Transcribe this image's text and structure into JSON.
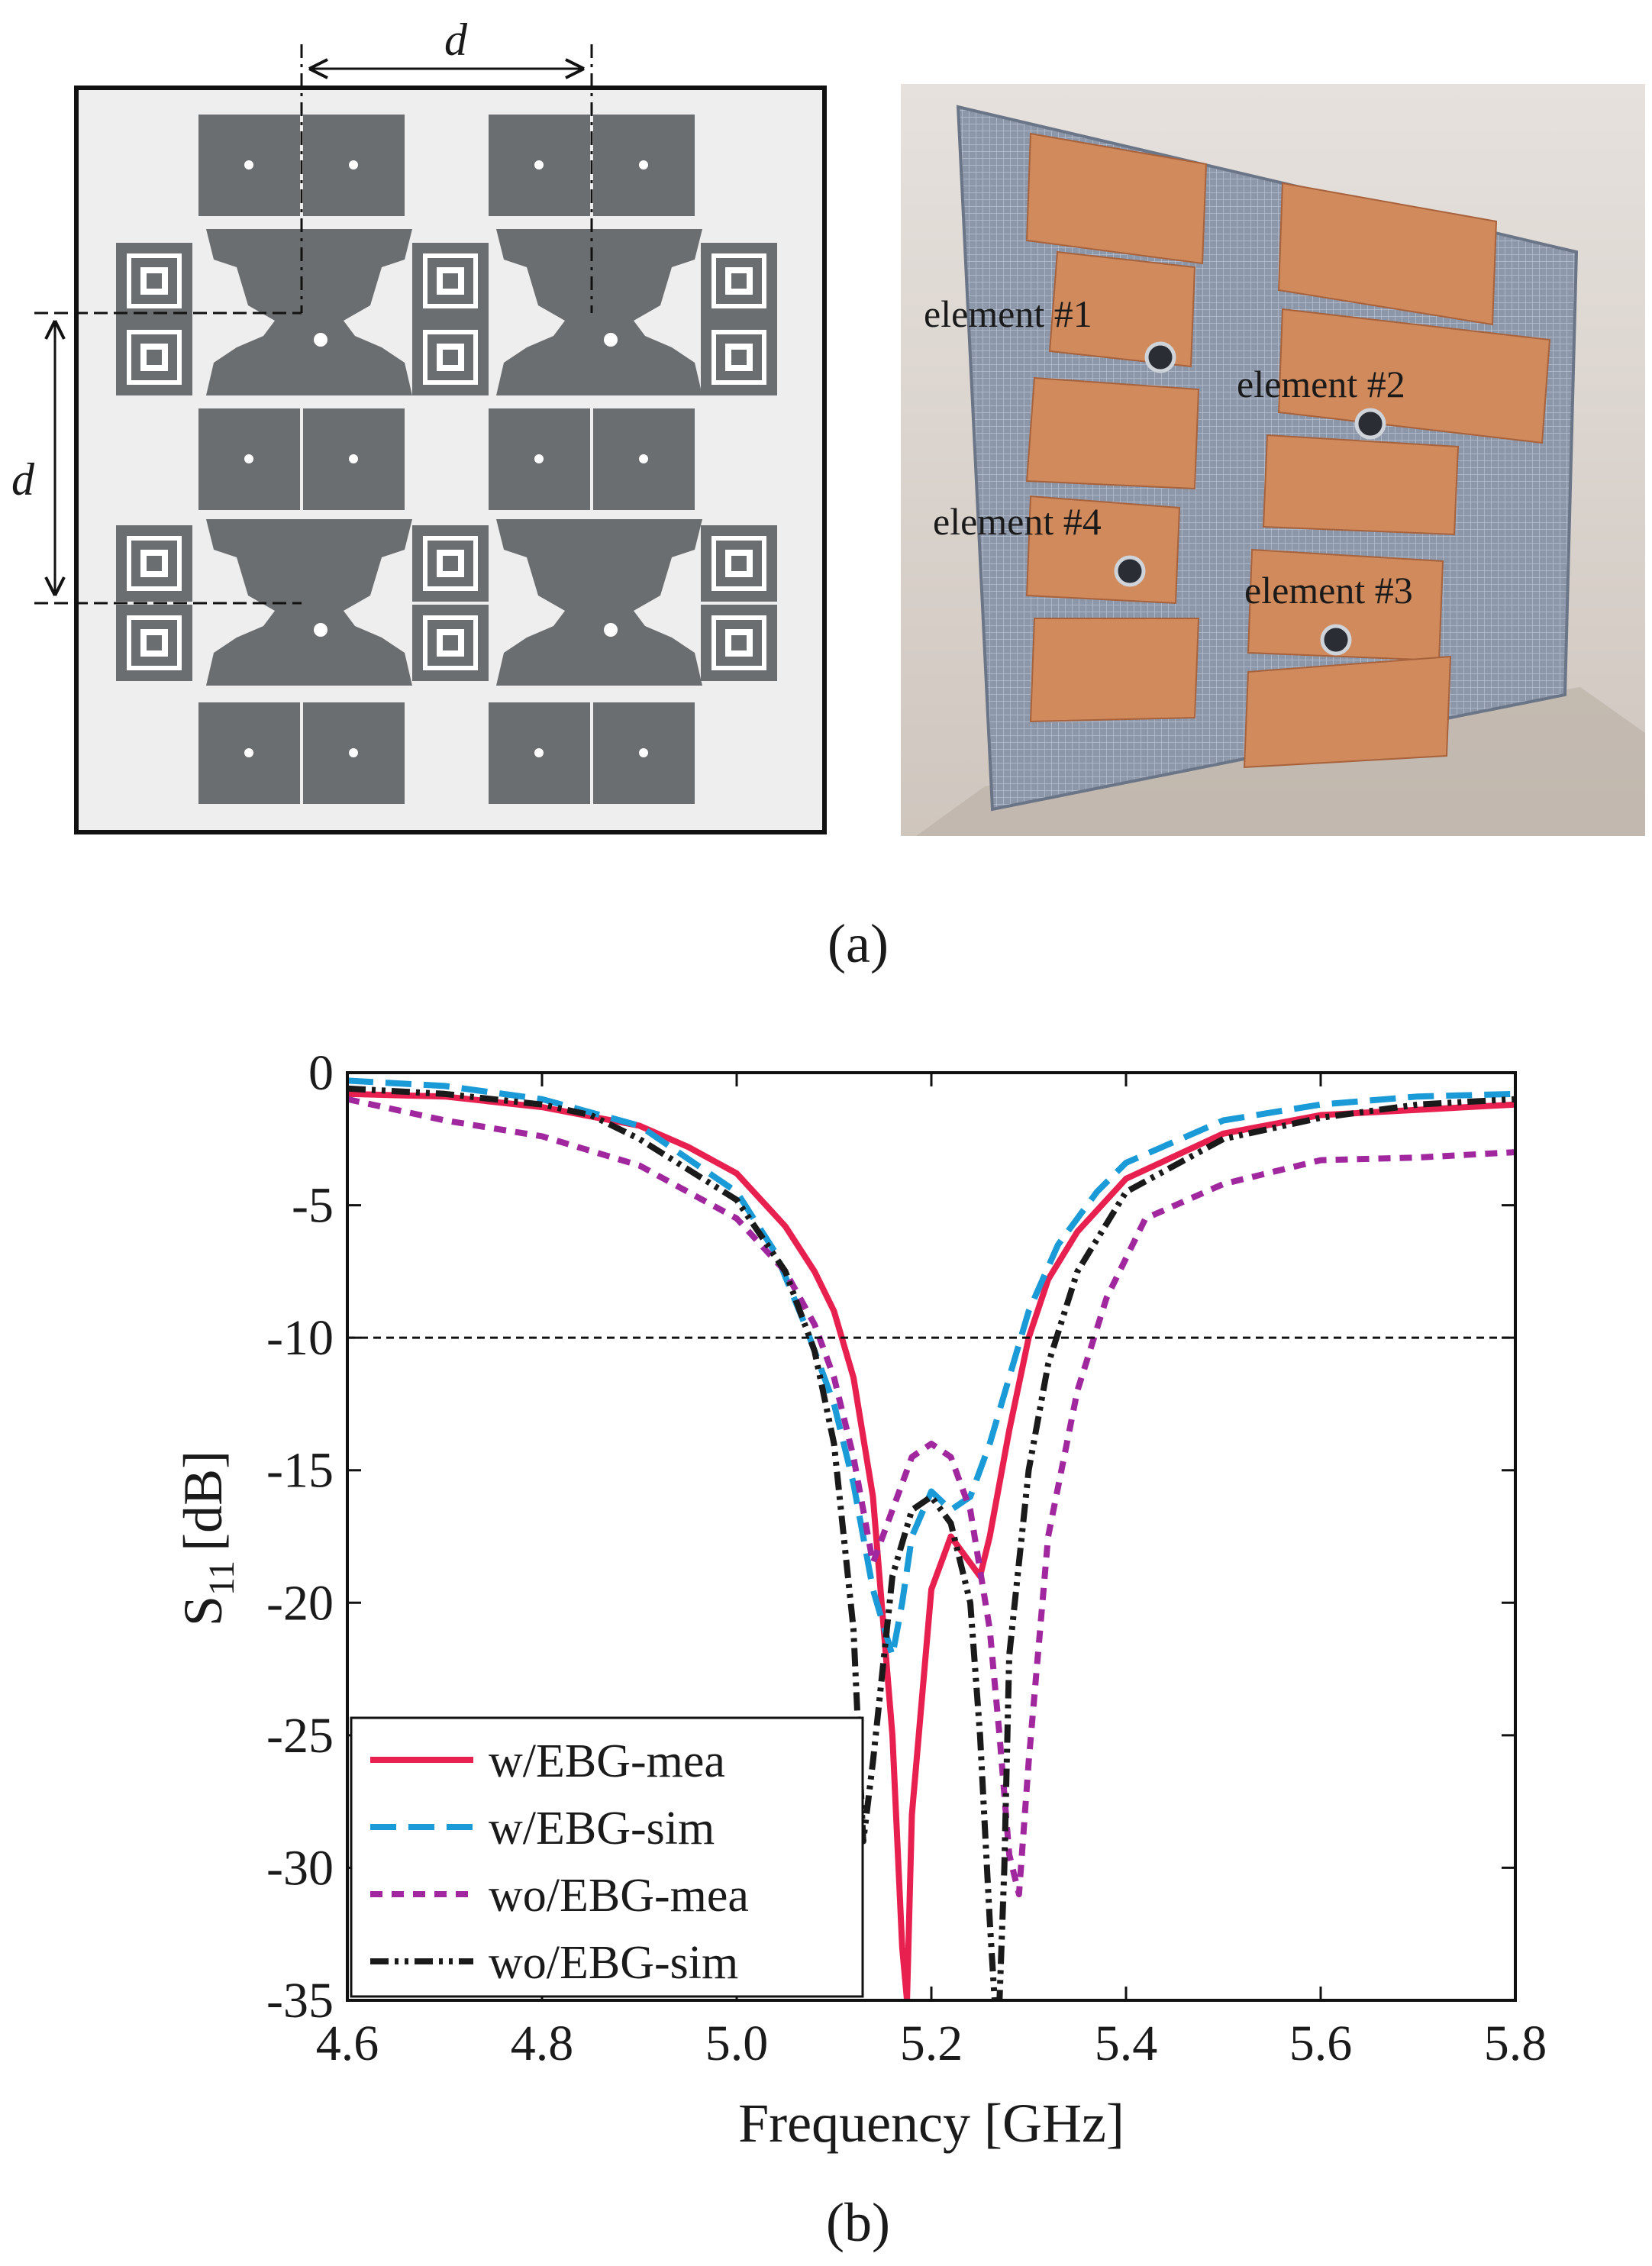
{
  "panel_a": {
    "caption": "(a)",
    "dimension_label_horizontal": "d",
    "dimension_label_vertical": "d",
    "photo_labels": [
      "element #1",
      "element #2",
      "element #4",
      "element #3"
    ],
    "colors": {
      "substrate": "#efeeee",
      "patch": "#6b6e70",
      "board": "#8a95a8",
      "copper": "#d08a5c"
    }
  },
  "panel_b": {
    "caption": "(b)"
  },
  "chart_data": {
    "type": "line",
    "title": "",
    "xlabel": "Frequency [GHz]",
    "ylabel_main": "S",
    "ylabel_sub": "11",
    "ylabel_unit": "[dB]",
    "xlim": [
      4.6,
      5.8
    ],
    "ylim": [
      -35,
      0
    ],
    "xticks": [
      4.6,
      4.8,
      5.0,
      5.2,
      5.4,
      5.6,
      5.8
    ],
    "xtick_labels": [
      "4.6",
      "4.8",
      "5.0",
      "5.2",
      "5.4",
      "5.6",
      "5.8"
    ],
    "yticks": [
      0,
      -5,
      -10,
      -15,
      -20,
      -25,
      -30,
      -35
    ],
    "ytick_labels": [
      "0",
      "-5",
      "-10",
      "-15",
      "-20",
      "-25",
      "-30",
      "-35"
    ],
    "reference_line": {
      "y": -10,
      "style": "dashed"
    },
    "legend_position": "bottom-left",
    "grid": false,
    "series": [
      {
        "name": "w/EBG-mea",
        "color": "#e8204f",
        "style": "solid",
        "x": [
          4.6,
          4.7,
          4.8,
          4.9,
          4.95,
          5.0,
          5.05,
          5.08,
          5.1,
          5.12,
          5.14,
          5.16,
          5.17,
          5.175,
          5.18,
          5.2,
          5.22,
          5.24,
          5.25,
          5.26,
          5.28,
          5.3,
          5.32,
          5.35,
          5.4,
          5.5,
          5.6,
          5.7,
          5.8
        ],
        "y": [
          -0.8,
          -0.9,
          -1.3,
          -2.0,
          -2.8,
          -3.8,
          -5.8,
          -7.5,
          -9.0,
          -11.5,
          -16.0,
          -25.0,
          -33.0,
          -35.0,
          -28.0,
          -19.5,
          -17.5,
          -18.5,
          -19.0,
          -17.5,
          -13.5,
          -10.0,
          -7.8,
          -6.0,
          -4.0,
          -2.3,
          -1.6,
          -1.4,
          -1.2
        ]
      },
      {
        "name": "w/EBG-sim",
        "color": "#1a9ad6",
        "style": "dashed",
        "x": [
          4.6,
          4.7,
          4.8,
          4.9,
          5.0,
          5.04,
          5.07,
          5.1,
          5.12,
          5.14,
          5.16,
          5.17,
          5.18,
          5.2,
          5.22,
          5.24,
          5.26,
          5.28,
          5.3,
          5.33,
          5.37,
          5.4,
          5.5,
          5.6,
          5.7,
          5.8
        ],
        "y": [
          -0.3,
          -0.5,
          -1.0,
          -2.0,
          -4.5,
          -6.8,
          -9.5,
          -12.5,
          -15.5,
          -19.5,
          -22.0,
          -20.0,
          -17.5,
          -15.8,
          -16.5,
          -16.0,
          -14.0,
          -11.5,
          -9.0,
          -6.5,
          -4.5,
          -3.4,
          -1.8,
          -1.2,
          -0.9,
          -0.8
        ]
      },
      {
        "name": "wo/EBG-mea",
        "color": "#a0279e",
        "style": "dotted-dash",
        "x": [
          4.6,
          4.7,
          4.8,
          4.9,
          5.0,
          5.05,
          5.08,
          5.1,
          5.12,
          5.14,
          5.16,
          5.18,
          5.2,
          5.22,
          5.24,
          5.26,
          5.27,
          5.28,
          5.29,
          5.3,
          5.32,
          5.35,
          5.38,
          5.42,
          5.5,
          5.6,
          5.7,
          5.8
        ],
        "y": [
          -1.0,
          -1.8,
          -2.4,
          -3.5,
          -5.5,
          -7.5,
          -9.5,
          -11.5,
          -14.5,
          -18.5,
          -16.5,
          -14.5,
          -14.0,
          -14.5,
          -16.5,
          -21.0,
          -25.0,
          -29.5,
          -31.0,
          -26.0,
          -17.5,
          -12.0,
          -8.5,
          -5.5,
          -4.2,
          -3.3,
          -3.2,
          -3.0
        ]
      },
      {
        "name": "wo/EBG-sim",
        "color": "#1a1a1a",
        "style": "dash-dot-dot",
        "x": [
          4.6,
          4.7,
          4.8,
          4.85,
          4.9,
          5.0,
          5.05,
          5.08,
          5.1,
          5.12,
          5.13,
          5.14,
          5.16,
          5.18,
          5.2,
          5.22,
          5.24,
          5.25,
          5.26,
          5.265,
          5.27,
          5.275,
          5.28,
          5.3,
          5.32,
          5.35,
          5.4,
          5.5,
          5.6,
          5.7,
          5.8
        ],
        "y": [
          -0.6,
          -0.8,
          -1.2,
          -1.6,
          -2.5,
          -4.8,
          -7.5,
          -10.5,
          -14.0,
          -21.0,
          -29.0,
          -26.0,
          -19.0,
          -16.5,
          -16.0,
          -17.0,
          -20.0,
          -25.0,
          -32.0,
          -35.0,
          -35.0,
          -30.0,
          -22.0,
          -15.0,
          -11.0,
          -7.5,
          -4.5,
          -2.5,
          -1.7,
          -1.2,
          -1.0
        ]
      }
    ]
  }
}
